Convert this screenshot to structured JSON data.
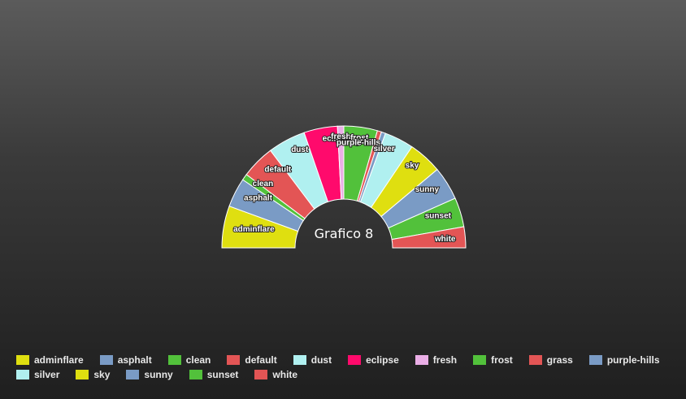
{
  "chart_data": {
    "type": "pie",
    "title": "Grafico 8",
    "legend_position": "bottom-left",
    "categories": [
      "adminflare",
      "asphalt",
      "clean",
      "default",
      "dust",
      "eclipse",
      "fresh",
      "frost",
      "grass",
      "purple-hills",
      "silver",
      "sky",
      "sunny",
      "sunset",
      "white"
    ],
    "values": [
      10,
      7,
      1.5,
      8,
      9,
      8,
      1.5,
      8,
      1,
      1,
      7,
      8,
      8,
      7,
      5
    ],
    "colors": [
      "#dfdf10",
      "#7a9bc5",
      "#52c13b",
      "#e35555",
      "#b0f0f0",
      "#ff0a6c",
      "#eaaee6",
      "#52c13b",
      "#e35555",
      "#7a9bc5",
      "#b0f0f0",
      "#dfdf10",
      "#7a9bc5",
      "#52c13b",
      "#e35555"
    ]
  }
}
